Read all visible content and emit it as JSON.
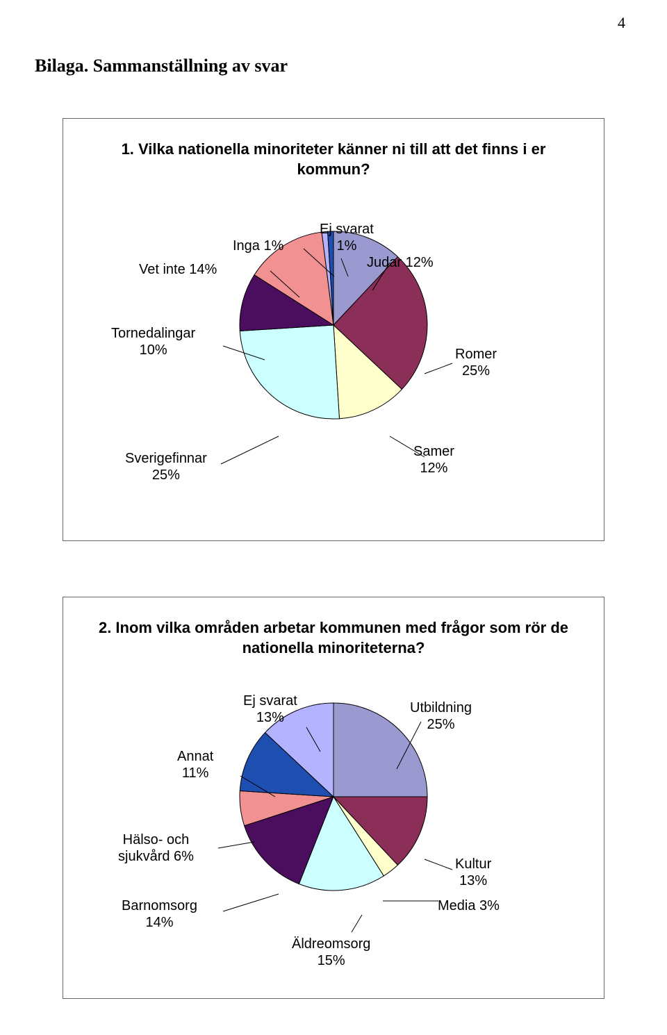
{
  "page_number": "4",
  "heading": "Bilaga. Sammanställning av svar",
  "chart1": {
    "type": "pie",
    "title": "1. Vilka nationella minoriteter känner ni till att det finns i er kommun?",
    "background_color": "#ffffff",
    "border_color": "#666666",
    "label_fontsize": 20,
    "title_fontsize": 22,
    "slice_border_color": "#000000",
    "slices": [
      {
        "label": "Judar 12%",
        "value": 12,
        "color": "#9a9ad1"
      },
      {
        "label": "Romer 25%",
        "value": 25,
        "color": "#8b2e58"
      },
      {
        "label": "Samer 12%",
        "value": 12,
        "color": "#ffffcc"
      },
      {
        "label": "Sverigefinnar 25%",
        "value": 25,
        "color": "#ccffff"
      },
      {
        "label": "Tornedalingar 10%",
        "value": 10,
        "color": "#4b0d5e"
      },
      {
        "label": "Vet inte 14%",
        "value": 14,
        "color": "#f29191"
      },
      {
        "label": "Inga 1%",
        "value": 1,
        "color": "#b3b3ff"
      },
      {
        "label": "Ej svarat 1%",
        "value": 1,
        "color": "#1e4fb0"
      }
    ],
    "labels": {
      "ej_svarat_top": "Ej svarat",
      "ej_svarat_bot": "1%",
      "inga": "Inga 1%",
      "judar": "Judar 12%",
      "vet_inte": "Vet inte 14%",
      "tornedalingar_top": "Tornedalingar",
      "tornedalingar_bot": "10%",
      "romer_top": "Romer",
      "romer_bot": "25%",
      "sverigefinnar_top": "Sverigefinnar",
      "sverigefinnar_bot": "25%",
      "samer_top": "Samer",
      "samer_bot": "12%"
    }
  },
  "chart2": {
    "type": "pie",
    "title": "2. Inom vilka områden arbetar kommunen med frågor som rör de nationella minoriteterna?",
    "background_color": "#ffffff",
    "border_color": "#666666",
    "label_fontsize": 20,
    "title_fontsize": 22,
    "slice_border_color": "#000000",
    "slices": [
      {
        "label": "Utbildning 25%",
        "value": 25,
        "color": "#9a9ad1"
      },
      {
        "label": "Kultur 13%",
        "value": 13,
        "color": "#8b2e58"
      },
      {
        "label": "Media 3%",
        "value": 3,
        "color": "#ffffcc"
      },
      {
        "label": "Äldreomsorg 15%",
        "value": 15,
        "color": "#ccffff"
      },
      {
        "label": "Barnomsorg 14%",
        "value": 14,
        "color": "#4b0d5e"
      },
      {
        "label": "Hälso- och sjukvård 6%",
        "value": 6,
        "color": "#f29191"
      },
      {
        "label": "Annat 11%",
        "value": 11,
        "color": "#1e4fb0"
      },
      {
        "label": "Ej svarat 13%",
        "value": 13,
        "color": "#b3b3ff"
      }
    ],
    "labels": {
      "ej_svarat_top": "Ej svarat",
      "ej_svarat_bot": "13%",
      "utbildning_top": "Utbildning",
      "utbildning_bot": "25%",
      "annat_top": "Annat",
      "annat_bot": "11%",
      "halso_top": "Hälso- och",
      "halso_bot": "sjukvård 6%",
      "kultur_top": "Kultur",
      "kultur_bot": "13%",
      "barnomsorg_top": "Barnomsorg",
      "barnomsorg_bot": "14%",
      "media": "Media 3%",
      "aldreomsorg_top": "Äldreomsorg",
      "aldreomsorg_bot": "15%"
    }
  }
}
